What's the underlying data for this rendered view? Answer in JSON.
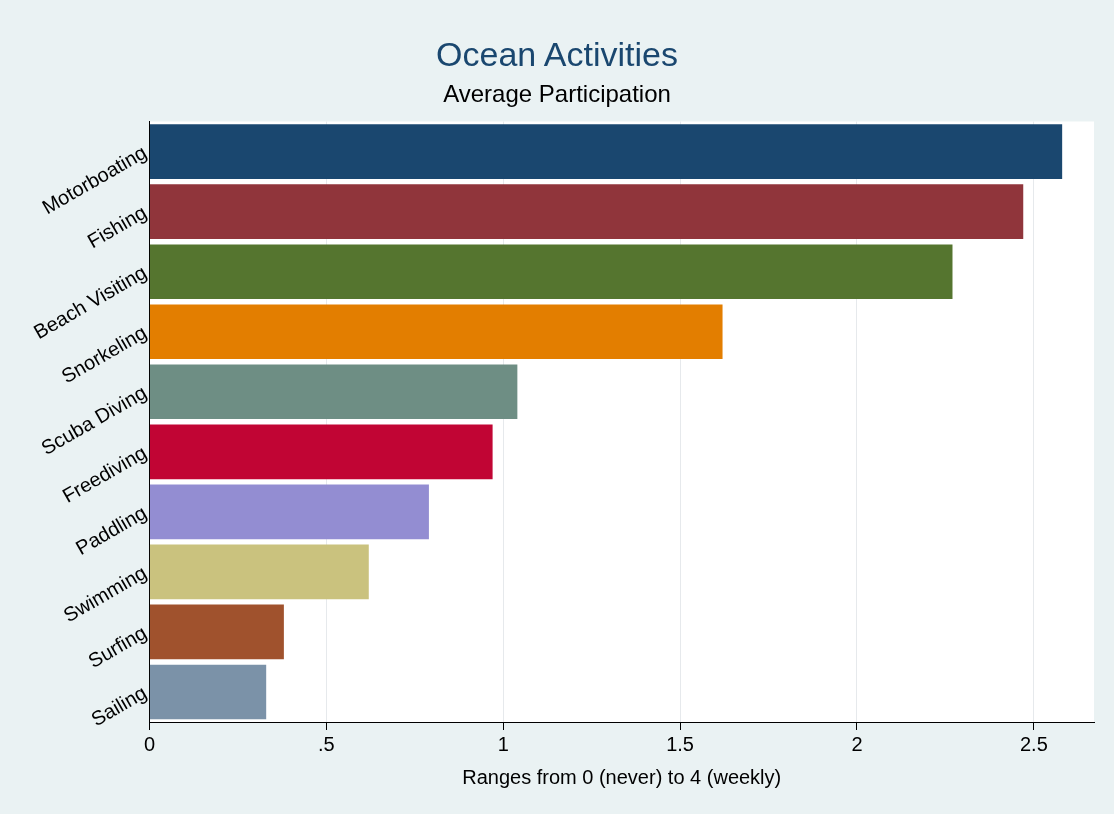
{
  "chart_data": {
    "type": "bar",
    "orientation": "horizontal",
    "title": "Ocean Activities",
    "subtitle": "Average Participation",
    "xlabel": "Ranges from 0 (never) to 4 (weekly)",
    "categories": [
      "Motorboating",
      "Fishing",
      "Beach Visiting",
      "Snorkeling",
      "Scuba Diving",
      "Freediving",
      "Paddling",
      "Swimming",
      "Surfing",
      "Sailing"
    ],
    "values": [
      2.58,
      2.47,
      2.27,
      1.62,
      1.04,
      0.97,
      0.79,
      0.62,
      0.38,
      0.33
    ],
    "colors": [
      "#1a476f",
      "#90353b",
      "#55752f",
      "#e37e00",
      "#6e8e84",
      "#c10534",
      "#938dd2",
      "#cac27e",
      "#a0522d",
      "#7b92a8"
    ],
    "xlim": [
      0,
      2.67
    ],
    "xticks": [
      0,
      {
        "value": 0.5,
        "label": ".5"
      },
      1,
      1.5,
      2,
      2.5
    ],
    "grid": "x",
    "legend": false
  }
}
